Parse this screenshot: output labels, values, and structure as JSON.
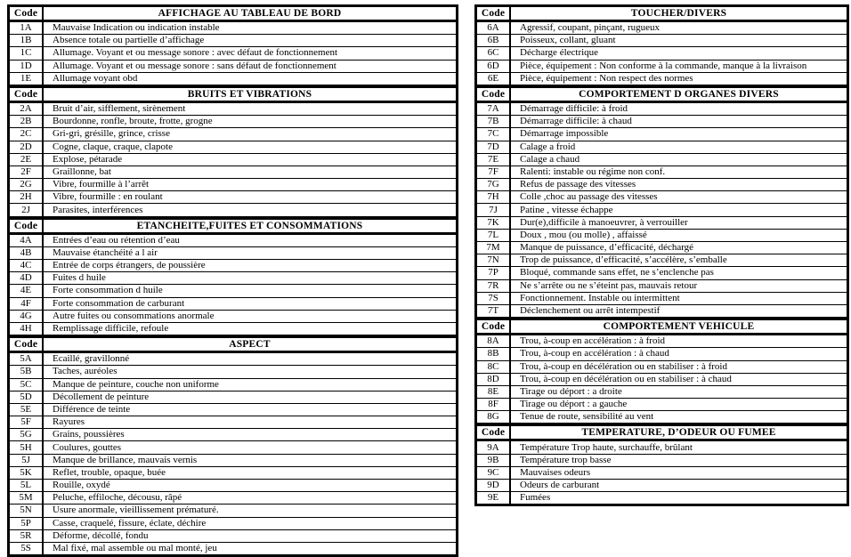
{
  "page": {
    "background": "#ffffff",
    "border_color": "#000000",
    "text_color": "#000000"
  },
  "code_column_header": "Code",
  "tables_left": [
    {
      "title": "AFFICHAGE AU TABLEAU DE BORD",
      "rows": [
        {
          "code": "1A",
          "label": "Mauvaise Indication ou indication instable"
        },
        {
          "code": "1B",
          "label": "Absence totale ou partielle d’affichage"
        },
        {
          "code": "1C",
          "label": "Allumage. Voyant et ou message sonore : avec défaut de fonctionnement"
        },
        {
          "code": "1D",
          "label": "Allumage. Voyant et ou message sonore : sans défaut de fonctionnement"
        },
        {
          "code": "1E",
          "label": "Allumage voyant obd"
        }
      ]
    },
    {
      "title": "BRUITS ET VIBRATIONS",
      "rows": [
        {
          "code": "2A",
          "label": "Bruit d’air, sifflement, sirènement"
        },
        {
          "code": "2B",
          "label": "Bourdonne, ronfle, broute, frotte, grogne"
        },
        {
          "code": "2C",
          "label": "Gri-gri, grésille, grince, crisse"
        },
        {
          "code": "2D",
          "label": "Cogne, claque, craque, clapote"
        },
        {
          "code": "2E",
          "label": "Explose, pétarade"
        },
        {
          "code": "2F",
          "label": "Graillonne, bat"
        },
        {
          "code": "2G",
          "label": "Vibre, fourmille à l’arrêt"
        },
        {
          "code": "2H",
          "label": "Vibre, fourmille : en roulant"
        },
        {
          "code": "2J",
          "label": "Parasites, interférences"
        }
      ]
    },
    {
      "title": "ETANCHEITE,FUITES ET CONSOMMATIONS",
      "rows": [
        {
          "code": "4A",
          "label": "Entrées d’eau ou rétention d’eau"
        },
        {
          "code": "4B",
          "label": "Mauvaise étanchéité a l air"
        },
        {
          "code": "4C",
          "label": "Entrée de corps étrangers, de poussière"
        },
        {
          "code": "4D",
          "label": "Fuites d huile"
        },
        {
          "code": "4E",
          "label": "Forte consommation d huile"
        },
        {
          "code": "4F",
          "label": "Forte consommation de carburant"
        },
        {
          "code": "4G",
          "label": "Autre fuites ou consommations anormale"
        },
        {
          "code": "4H",
          "label": "Remplissage difficile, refoule"
        }
      ]
    },
    {
      "title": "ASPECT",
      "rows": [
        {
          "code": "5A",
          "label": "Ecaillé, gravillonné"
        },
        {
          "code": "5B",
          "label": "Taches, auréoles"
        },
        {
          "code": "5C",
          "label": "Manque de peinture, couche non uniforme"
        },
        {
          "code": "5D",
          "label": "Décollement de peinture"
        },
        {
          "code": "5E",
          "label": "Différence de teinte"
        },
        {
          "code": "5F",
          "label": "Rayures"
        },
        {
          "code": "5G",
          "label": "Grains, poussières"
        },
        {
          "code": "5H",
          "label": "Coulures, gouttes"
        },
        {
          "code": "5J",
          "label": "Manque de brillance, mauvais vernis"
        },
        {
          "code": "5K",
          "label": "Reflet, trouble, opaque, buée"
        },
        {
          "code": "5L",
          "label": "Rouille, oxydé"
        },
        {
          "code": "5M",
          "label": "Peluche, effiloche, décousu, râpé"
        },
        {
          "code": "5N",
          "label": "Usure anormale, vieillissement prématuré."
        },
        {
          "code": "5P",
          "label": "Casse, craquelé, fissure, éclate, déchire"
        },
        {
          "code": "5R",
          "label": "Déforme, décollé, fondu"
        },
        {
          "code": "5S",
          "label": "Mal fixé, mal assemble ou mal monté,  jeu"
        }
      ]
    }
  ],
  "tables_right": [
    {
      "title": "TOUCHER/DIVERS",
      "rows": [
        {
          "code": "6A",
          "label": "Agressif, coupant, pinçant, rugueux"
        },
        {
          "code": "6B",
          "label": "Poisseux, collant, gluant"
        },
        {
          "code": "6C",
          "label": "Décharge électrique"
        },
        {
          "code": "6D",
          "label": "Pièce, équipement : Non conforme à la commande, manque à la livraison"
        },
        {
          "code": "6E",
          "label": "Pièce, équipement : Non respect des normes"
        }
      ]
    },
    {
      "title": "COMPORTEMENT D ORGANES DIVERS",
      "rows": [
        {
          "code": "7A",
          "label": "Démarrage difficile: à froid"
        },
        {
          "code": "7B",
          "label": "Démarrage difficile: à chaud"
        },
        {
          "code": "7C",
          "label": "Démarrage impossible"
        },
        {
          "code": "7D",
          "label": "Calage a froid"
        },
        {
          "code": "7E",
          "label": "Calage a chaud"
        },
        {
          "code": "7F",
          "label": "Ralenti: instable ou régime non conf."
        },
        {
          "code": "7G",
          "label": "Refus de passage des vitesses"
        },
        {
          "code": "7H",
          "label": "Colle ,choc au passage des vitesses"
        },
        {
          "code": "7J",
          "label": "Patine , vitesse échappe"
        },
        {
          "code": "7K",
          "label": "Dur(e),difficile à manoeuvrer, à verrouiller"
        },
        {
          "code": "7L",
          "label": "Doux , mou (ou molle) , affaissé"
        },
        {
          "code": "7M",
          "label": "Manque de puissance, d’efficacité, déchargé"
        },
        {
          "code": "7N",
          "label": "Trop de puissance, d’efficacité, s’accélère, s’emballe"
        },
        {
          "code": "7P",
          "label": "Bloqué, commande sans effet, ne s’enclenche pas"
        },
        {
          "code": "7R",
          "label": "Ne s’arrête ou ne s’éteint pas, mauvais retour"
        },
        {
          "code": "7S",
          "label": "Fonctionnement. Instable ou intermittent"
        },
        {
          "code": "7T",
          "label": "Déclenchement ou arrêt intempestif"
        }
      ]
    },
    {
      "title": "COMPORTEMENT VEHICULE",
      "rows": [
        {
          "code": "8A",
          "label": "Trou, à-coup en accélération : à froid"
        },
        {
          "code": "8B",
          "label": "Trou, à-coup en accélération : à chaud"
        },
        {
          "code": "8C",
          "label": "Trou, à-coup en décélération ou en stabiliser : à froid"
        },
        {
          "code": "8D",
          "label": "Trou, à-coup en décélération ou en stabiliser : à chaud"
        },
        {
          "code": "8E",
          "label": "Tirage ou déport : a droite"
        },
        {
          "code": "8F",
          "label": "Tirage ou déport : a gauche"
        },
        {
          "code": "8G",
          "label": "Tenue de route, sensibilité au vent"
        }
      ]
    },
    {
      "title": "TEMPERATURE, D’ODEUR OU FUMEE",
      "rows": [
        {
          "code": "9A",
          "label": "Température Trop haute, surchauffe, brûlant"
        },
        {
          "code": "9B",
          "label": "Température trop basse"
        },
        {
          "code": "9C",
          "label": "Mauvaises odeurs"
        },
        {
          "code": "9D",
          "label": "Odeurs de carburant"
        },
        {
          "code": "9E",
          "label": "Fumées"
        }
      ]
    }
  ]
}
